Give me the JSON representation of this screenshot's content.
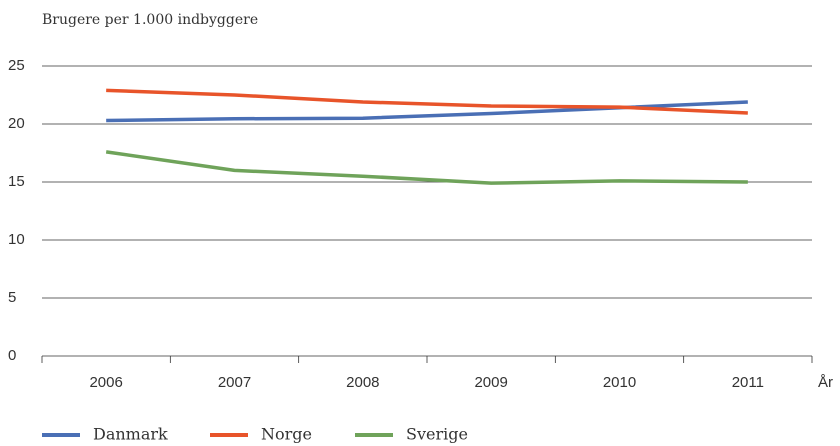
{
  "chart_data": {
    "type": "line",
    "y_label": "Brugere per 1.000 indbyggere",
    "x_label": "År",
    "categories": [
      "2006",
      "2007",
      "2008",
      "2009",
      "2010",
      "2011"
    ],
    "series": [
      {
        "name": "Danmark",
        "color": "#4a6fb5",
        "values": [
          20.3,
          20.45,
          20.5,
          20.9,
          21.4,
          21.9
        ]
      },
      {
        "name": "Norge",
        "color": "#e8542a",
        "values": [
          22.9,
          22.5,
          21.9,
          21.55,
          21.45,
          20.95
        ]
      },
      {
        "name": "Sverige",
        "color": "#6fa35a",
        "values": [
          17.6,
          16.0,
          15.5,
          14.9,
          15.1,
          15.0
        ]
      }
    ],
    "ylim": [
      0,
      25
    ],
    "yticks": [
      0,
      5,
      10,
      15,
      20,
      25
    ],
    "grid": true,
    "legend": "bottom"
  }
}
